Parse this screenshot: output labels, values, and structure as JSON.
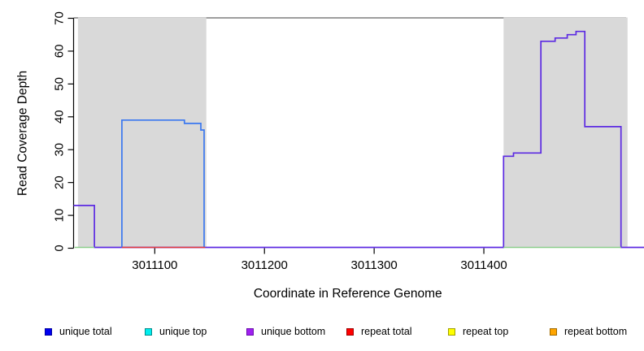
{
  "chart_data": {
    "type": "line",
    "subtype": "step-coverage",
    "title": "",
    "xlabel": "Coordinate in Reference Genome",
    "ylabel": "Read Coverage Depth",
    "xlim": [
      3011026,
      3011546
    ],
    "ylim": [
      0,
      70
    ],
    "x_ticks": [
      3011100,
      3011200,
      3011300,
      3011400
    ],
    "y_ticks": [
      0,
      10,
      20,
      30,
      40,
      50,
      60,
      70
    ],
    "grid": false,
    "top_rule_color": "#7f7f7f",
    "axis_color": "#000000",
    "shaded_regions": [
      {
        "x0": 3011030,
        "x1": 3011147,
        "color": "#d9d9d9"
      },
      {
        "x0": 3011418,
        "x1": 3011531,
        "color": "#d9d9d9"
      }
    ],
    "series": [
      {
        "name": "unique bottom coverage",
        "color": "#5c2ae2",
        "width": 1.7,
        "segments": [
          [
            [
              3011026,
              13
            ],
            [
              3011045,
              13
            ],
            [
              3011045,
              0
            ],
            [
              3011418,
              0
            ],
            [
              3011418,
              28
            ],
            [
              3011427,
              28
            ],
            [
              3011427,
              29
            ],
            [
              3011452,
              29
            ],
            [
              3011452,
              63
            ],
            [
              3011465,
              63
            ],
            [
              3011465,
              64
            ],
            [
              3011476,
              64
            ],
            [
              3011476,
              65
            ],
            [
              3011484,
              65
            ],
            [
              3011484,
              66
            ],
            [
              3011492,
              66
            ],
            [
              3011492,
              37
            ],
            [
              3011525,
              37
            ],
            [
              3011525,
              0
            ],
            [
              3011546,
              0
            ]
          ]
        ]
      },
      {
        "name": "unique total coverage",
        "color": "#3a78f0",
        "width": 1.7,
        "segments": [
          [
            [
              3011070,
              0
            ],
            [
              3011070,
              39
            ],
            [
              3011127,
              39
            ],
            [
              3011127,
              38
            ],
            [
              3011142,
              38
            ],
            [
              3011142,
              36
            ],
            [
              3011145,
              36
            ],
            [
              3011145,
              0
            ]
          ]
        ]
      },
      {
        "name": "repeat zero baseline",
        "color": "#e23c3c",
        "width": 1.5,
        "segments": [
          [
            [
              3011070,
              0
            ],
            [
              3011146,
              0
            ]
          ]
        ]
      },
      {
        "name": "green zero baseline",
        "color": "#8ccf8c",
        "width": 1.5,
        "segments": [
          [
            [
              3011027,
              0
            ],
            [
              3011045,
              0
            ]
          ],
          [
            [
              3011418,
              0
            ],
            [
              3011525,
              0
            ]
          ]
        ]
      }
    ],
    "legend": {
      "position": "bottom",
      "items": [
        {
          "label": "unique total",
          "fill": "#0000f0",
          "border": "#0000a0"
        },
        {
          "label": "unique top",
          "fill": "#00eeee",
          "border": "#008b8b"
        },
        {
          "label": "unique bottom",
          "fill": "#a020f0",
          "border": "#6a0dad"
        },
        {
          "label": "repeat total",
          "fill": "#ff0000",
          "border": "#a00000"
        },
        {
          "label": "repeat top",
          "fill": "#ffff00",
          "border": "#a0a000"
        },
        {
          "label": "repeat bottom",
          "fill": "#ffa500",
          "border": "#a06a00"
        }
      ]
    }
  }
}
